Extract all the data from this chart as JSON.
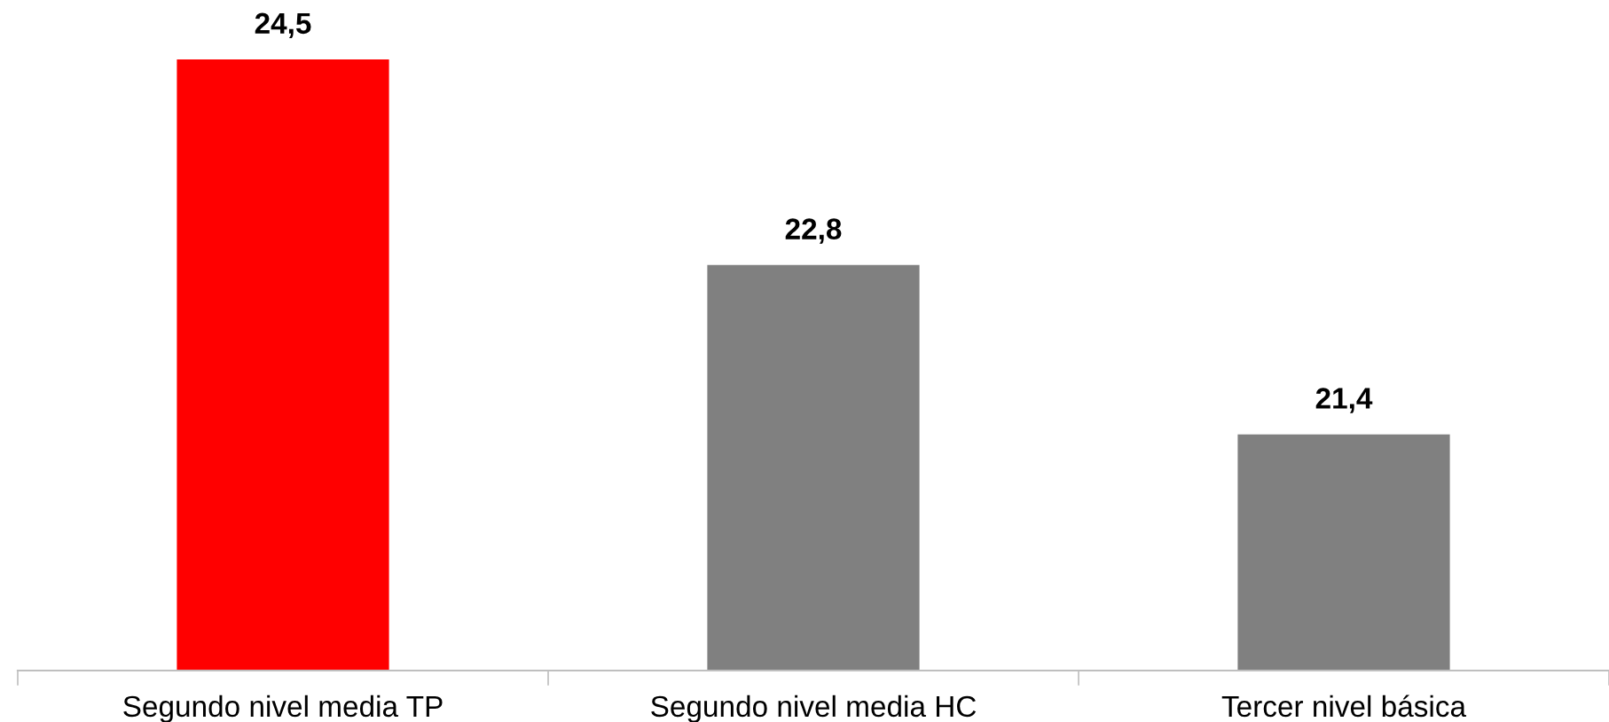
{
  "chart_data": {
    "type": "bar",
    "categories": [
      "Segundo nivel media TP",
      "Segundo nivel media HC",
      "Tercer nivel básica"
    ],
    "values": [
      24.5,
      22.8,
      21.4
    ],
    "value_labels": [
      "24,5",
      "22,8",
      "21,4"
    ],
    "colors": [
      "#ff0000",
      "#808080",
      "#808080"
    ],
    "grid": false,
    "legend": false
  }
}
